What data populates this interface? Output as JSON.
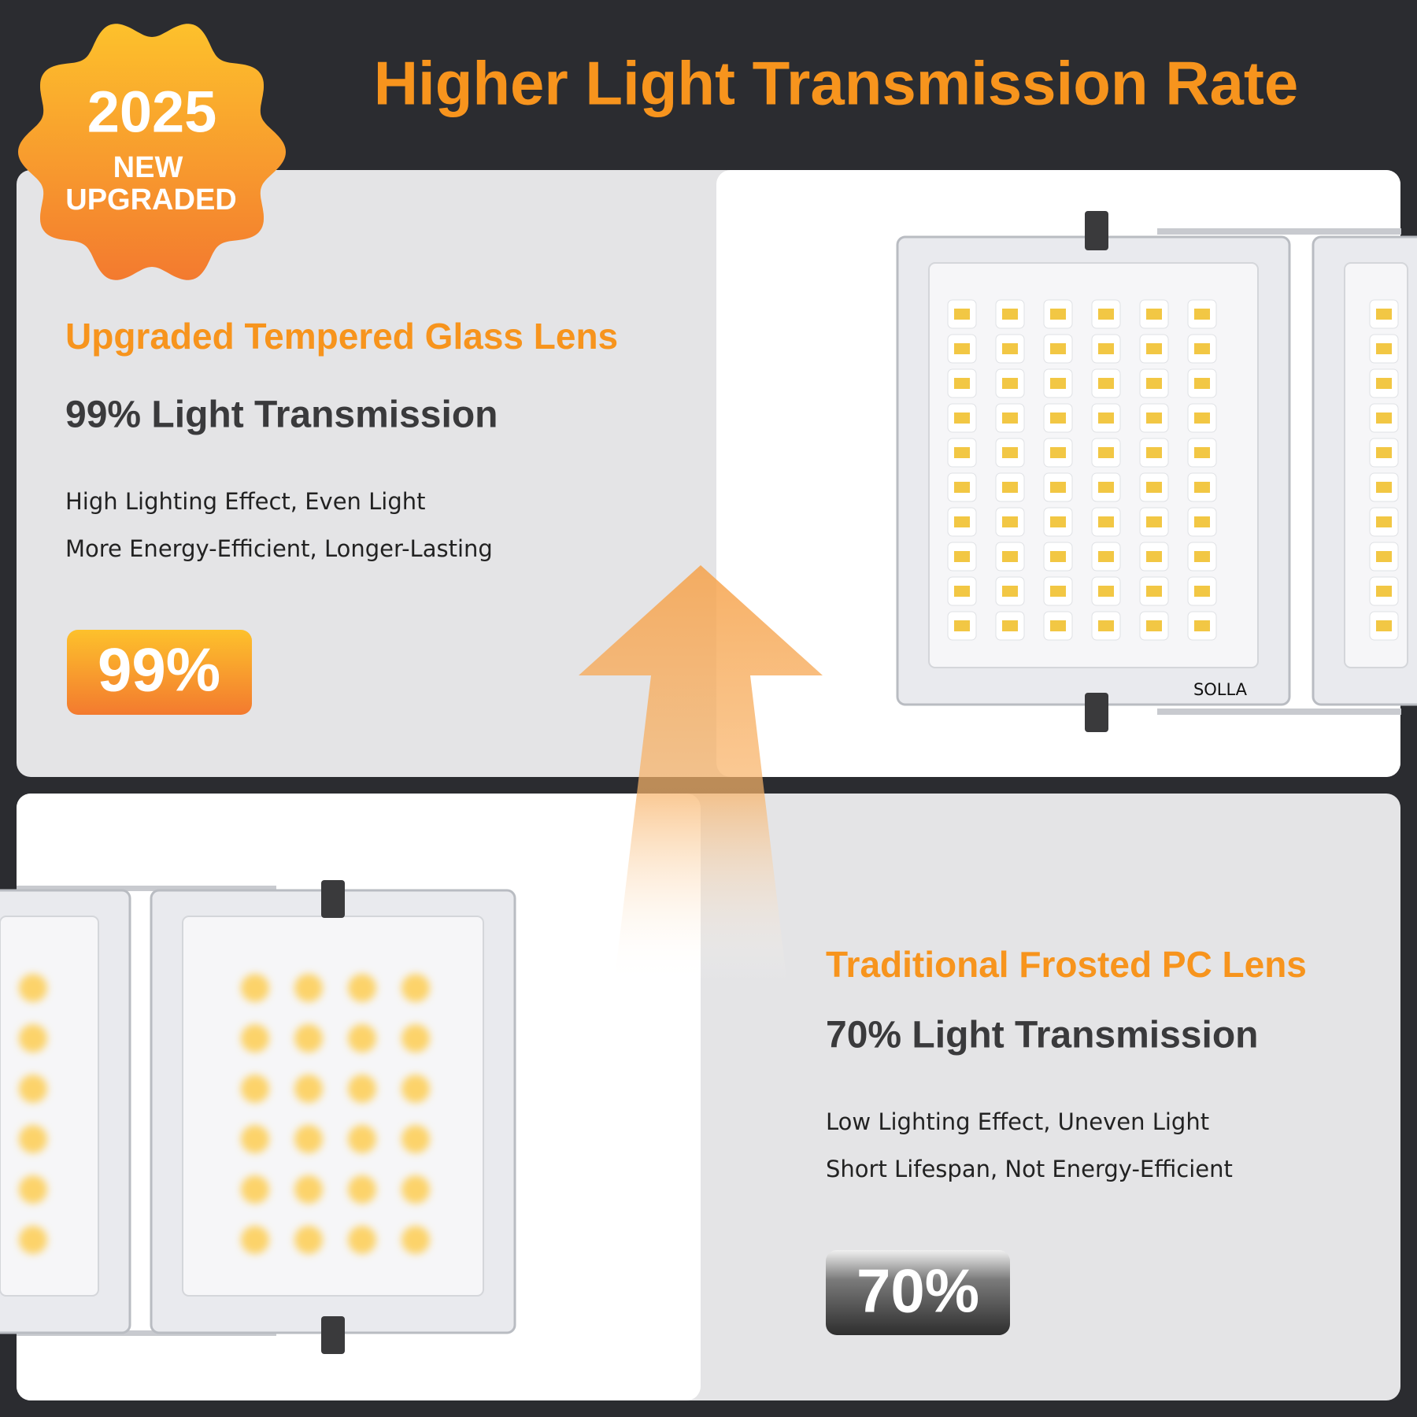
{
  "header": {
    "title": "Higher Light Transmission Rate"
  },
  "badge": {
    "year": "2025",
    "line1": "NEW",
    "line2": "UPGRADED"
  },
  "top_panel": {
    "heading": "Upgraded Tempered Glass Lens",
    "subheading": "99% Light Transmission",
    "features": [
      "High Lighting Effect, Even Light",
      "More Energy-Efficient, Longer-Lasting"
    ],
    "percent": "99%"
  },
  "bottom_panel": {
    "heading": "Traditional Frosted PC Lens",
    "subheading": "70% Light Transmission",
    "features": [
      "Low Lighting Effect, Uneven Light",
      "Short Lifespan, Not Energy-Efficient"
    ],
    "percent": "70%"
  },
  "product_label": "SOLLA"
}
